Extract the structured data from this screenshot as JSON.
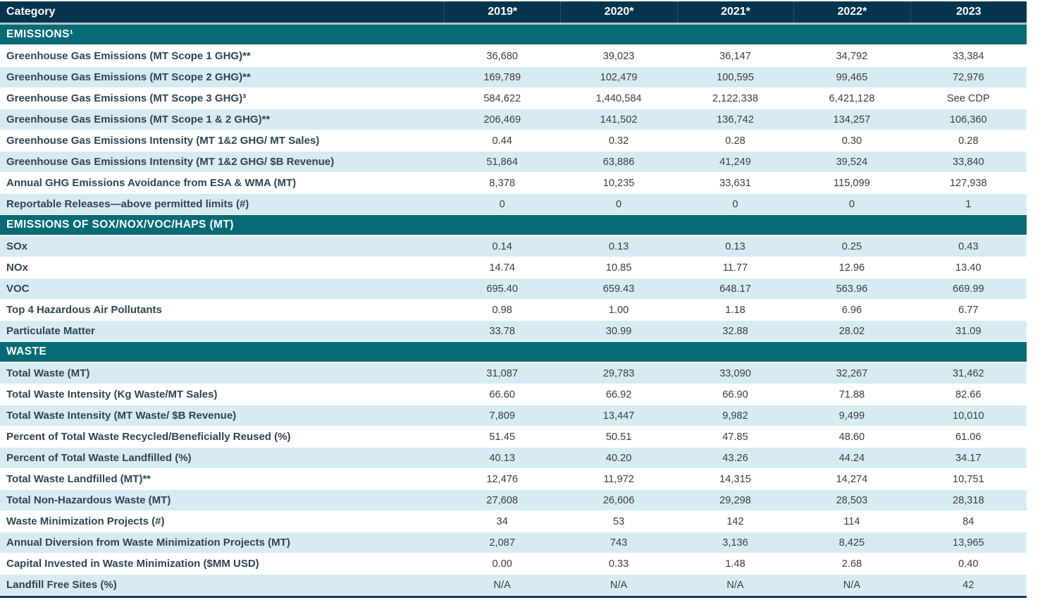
{
  "colors": {
    "header_bg": "#06344d",
    "section_bg": "#066b74",
    "stripe_bg": "#d7ecf2",
    "row_bg": "#ffffff",
    "label_text": "#2e4554",
    "value_text": "#3d3d3d",
    "header_separator": "#b2c3cb",
    "bottom_border": "#0d3c50"
  },
  "chart_data": {
    "type": "table",
    "columns": [
      "Category",
      "2019*",
      "2020*",
      "2021*",
      "2022*",
      "2023"
    ],
    "sections": [
      {
        "title": "EMISSIONS¹",
        "zebra_start": "white",
        "rows": [
          {
            "label": "Greenhouse Gas Emissions (MT Scope 1 GHG)**",
            "values": [
              "36,680",
              "39,023",
              "36,147",
              "34,792",
              "33,384"
            ]
          },
          {
            "label": "Greenhouse Gas Emissions (MT Scope 2 GHG)**",
            "values": [
              "169,789",
              "102,479",
              "100,595",
              "99,465",
              "72,976"
            ]
          },
          {
            "label": "Greenhouse Gas Emissions (MT Scope 3 GHG)³",
            "values": [
              "584,622",
              "1,440,584",
              "2,122,338",
              "6,421,128",
              "See CDP"
            ]
          },
          {
            "label": "Greenhouse Gas Emissions (MT Scope 1 & 2 GHG)**",
            "values": [
              "206,469",
              "141,502",
              "136,742",
              "134,257",
              "106,360"
            ]
          },
          {
            "label": "Greenhouse Gas Emissions Intensity (MT 1&2 GHG/ MT Sales)",
            "values": [
              "0.44",
              "0.32",
              "0.28",
              "0.30",
              "0.28"
            ]
          },
          {
            "label": "Greenhouse Gas Emissions Intensity (MT 1&2 GHG/ $B Revenue)",
            "values": [
              "51,864",
              "63,886",
              "41,249",
              "39,524",
              "33,840"
            ]
          },
          {
            "label": "Annual GHG Emissions Avoidance from ESA & WMA (MT)",
            "values": [
              "8,378",
              "10,235",
              "33,631",
              "115,099",
              "127,938"
            ]
          },
          {
            "label": "Reportable Releases—above permitted limits (#)",
            "values": [
              "0",
              "0",
              "0",
              "0",
              "1"
            ]
          }
        ]
      },
      {
        "title": "EMISSIONS OF SOX/NOX/VOC/HAPS (MT)",
        "zebra_start": "blue",
        "rows": [
          {
            "label": "SOx",
            "values": [
              "0.14",
              "0.13",
              "0.13",
              "0.25",
              "0.43"
            ]
          },
          {
            "label": "NOx",
            "values": [
              "14.74",
              "10.85",
              "11.77",
              "12.96",
              "13.40"
            ]
          },
          {
            "label": "VOC",
            "values": [
              "695.40",
              "659.43",
              "648.17",
              "563.96",
              "669.99"
            ]
          },
          {
            "label": "Top 4 Hazardous Air Pollutants",
            "values": [
              "0.98",
              "1.00",
              "1.18",
              "6.96",
              "6.77"
            ]
          },
          {
            "label": "Particulate Matter",
            "values": [
              "33.78",
              "30.99",
              "32.88",
              "28.02",
              "31.09"
            ]
          }
        ]
      },
      {
        "title": "WASTE",
        "zebra_start": "blue",
        "rows": [
          {
            "label": "Total Waste (MT)",
            "values": [
              "31,087",
              "29,783",
              "33,090",
              "32,267",
              "31,462"
            ]
          },
          {
            "label": "Total Waste Intensity (Kg Waste/MT Sales)",
            "values": [
              "66.60",
              "66.92",
              "66.90",
              "71.88",
              "82.66"
            ]
          },
          {
            "label": "Total Waste Intensity (MT Waste/ $B Revenue)",
            "values": [
              "7,809",
              "13,447",
              "9,982",
              "9,499",
              "10,010"
            ]
          },
          {
            "label": "Percent of Total Waste Recycled/Beneficially Reused (%)",
            "values": [
              "51.45",
              "50.51",
              "47.85",
              "48.60",
              "61.06"
            ]
          },
          {
            "label": "Percent of Total Waste Landfilled (%)",
            "values": [
              "40.13",
              "40.20",
              "43.26",
              "44.24",
              "34.17"
            ]
          },
          {
            "label": "Total Waste Landfilled (MT)**",
            "values": [
              "12,476",
              "11,972",
              "14,315",
              "14,274",
              "10,751"
            ]
          },
          {
            "label": "Total Non-Hazardous Waste (MT)",
            "values": [
              "27,608",
              "26,606",
              "29,298",
              "28,503",
              "28,318"
            ]
          },
          {
            "label": "Waste Minimization Projects (#)",
            "values": [
              "34",
              "53",
              "142",
              "114",
              "84"
            ]
          },
          {
            "label": "Annual Diversion from Waste Minimization Projects (MT)",
            "values": [
              "2,087",
              "743",
              "3,136",
              "8,425",
              "13,965"
            ]
          },
          {
            "label": "Capital Invested in Waste Minimization ($MM USD)",
            "values": [
              "0.00",
              "0.33",
              "1.48",
              "2.68",
              "0.40"
            ]
          },
          {
            "label": "Landfill Free Sites (%)",
            "values": [
              "N/A",
              "N/A",
              "N/A",
              "N/A",
              "42"
            ]
          }
        ]
      }
    ]
  }
}
